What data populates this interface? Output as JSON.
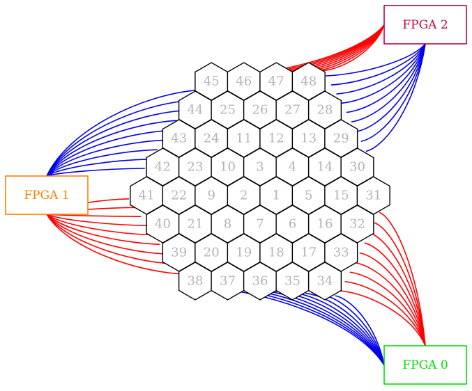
{
  "colors": {
    "wire_red": "#ff0000",
    "wire_blue": "#0000ee",
    "hex_label": "#b3b3b3",
    "fpga_0": "#00e000",
    "fpga_1": "#ff8000",
    "fpga_2": "#c0004a"
  },
  "fpgas": [
    {
      "id": "fpga0",
      "label": "FPGA 0",
      "color": "#00e000"
    },
    {
      "id": "fpga1",
      "label": "FPGA 1",
      "color": "#ff8000"
    },
    {
      "id": "fpga2",
      "label": "FPGA 2",
      "color": "#c0004a"
    }
  ],
  "hex_grid": {
    "rows": [
      [
        "45",
        "46",
        "47",
        "48"
      ],
      [
        "44",
        "25",
        "26",
        "27",
        "28"
      ],
      [
        "43",
        "24",
        "11",
        "12",
        "13",
        "29"
      ],
      [
        "42",
        "23",
        "10",
        "3",
        "4",
        "14",
        "30"
      ],
      [
        "41",
        "22",
        "9",
        "2",
        "1",
        "5",
        "15",
        "31"
      ],
      [
        "40",
        "21",
        "8",
        "7",
        "6",
        "16",
        "32"
      ],
      [
        "39",
        "20",
        "19",
        "18",
        "17",
        "33"
      ],
      [
        "38",
        "37",
        "36",
        "35",
        "34"
      ]
    ]
  },
  "connections": [
    {
      "fpga": "fpga2",
      "color": "red",
      "cells": [
        "45",
        "46",
        "47",
        "48"
      ],
      "count": 9
    },
    {
      "fpga": "fpga2",
      "color": "blue",
      "cells": [
        "48",
        "28",
        "29",
        "30"
      ],
      "count": 9
    },
    {
      "fpga": "fpga1",
      "color": "blue",
      "cells": [
        "45",
        "44",
        "43",
        "42"
      ],
      "count": 9
    },
    {
      "fpga": "fpga1",
      "color": "red",
      "cells": [
        "41",
        "40",
        "39",
        "38"
      ],
      "count": 9
    },
    {
      "fpga": "fpga0",
      "color": "red",
      "cells": [
        "31",
        "32",
        "33",
        "34"
      ],
      "count": 9
    },
    {
      "fpga": "fpga0",
      "color": "blue",
      "cells": [
        "38",
        "37",
        "36",
        "35",
        "34"
      ],
      "count": 9
    }
  ]
}
